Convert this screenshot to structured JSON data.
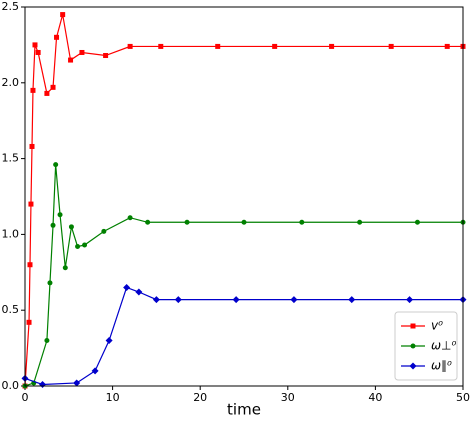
{
  "chart_data": {
    "type": "line",
    "xlabel": "time",
    "xlim": [
      0,
      50
    ],
    "xticks": [
      0,
      10,
      20,
      30,
      40,
      50
    ],
    "ylim": [
      0,
      2.5
    ],
    "yticks": [
      {
        "value": 0,
        "label": "0.0"
      },
      0.5,
      {
        "value": 1,
        "label": "1.0"
      },
      1.5,
      {
        "value": 2,
        "label": "2.0"
      },
      2.5
    ],
    "legend": "lower right",
    "series": [
      {
        "name": "v⁰",
        "color": "#ff0000",
        "marker": "square",
        "x": [
          0,
          0.46,
          0.57,
          0.68,
          0.8,
          0.91,
          1.14,
          1.5,
          2.5,
          3.2,
          3.6,
          4.3,
          5.2,
          6.5,
          9.2,
          12,
          15.5,
          22,
          28.5,
          35,
          41.8,
          48.2,
          50
        ],
        "values": [
          0,
          0.42,
          0.8,
          1.2,
          1.58,
          1.95,
          2.25,
          2.2,
          1.93,
          1.97,
          2.3,
          2.45,
          2.15,
          2.2,
          2.18,
          2.24,
          2.24,
          2.24,
          2.24,
          2.24,
          2.24,
          2.24,
          2.24
        ]
      },
      {
        "name": "ω⊥⁰",
        "color": "#008000",
        "marker": "circle",
        "x": [
          0,
          1,
          2.5,
          2.85,
          3.2,
          3.5,
          4.0,
          4.6,
          5.3,
          6,
          6.8,
          9,
          12,
          14,
          18.5,
          25,
          31.6,
          38.2,
          44.8,
          50
        ],
        "values": [
          0,
          0.02,
          0.3,
          0.68,
          1.06,
          1.46,
          1.13,
          0.78,
          1.05,
          0.92,
          0.93,
          1.02,
          1.11,
          1.08,
          1.08,
          1.08,
          1.08,
          1.08,
          1.08,
          1.08
        ]
      },
      {
        "name": "ω∥⁰",
        "color": "#0000cc",
        "marker": "diamond",
        "x": [
          0,
          2,
          5.9,
          8,
          9.6,
          11.6,
          13,
          15,
          17.5,
          24.1,
          30.7,
          37.3,
          43.9,
          50
        ],
        "values": [
          0.05,
          0.01,
          0.02,
          0.1,
          0.3,
          0.65,
          0.62,
          0.57,
          0.57,
          0.57,
          0.57,
          0.57,
          0.57,
          0.57
        ]
      }
    ]
  }
}
